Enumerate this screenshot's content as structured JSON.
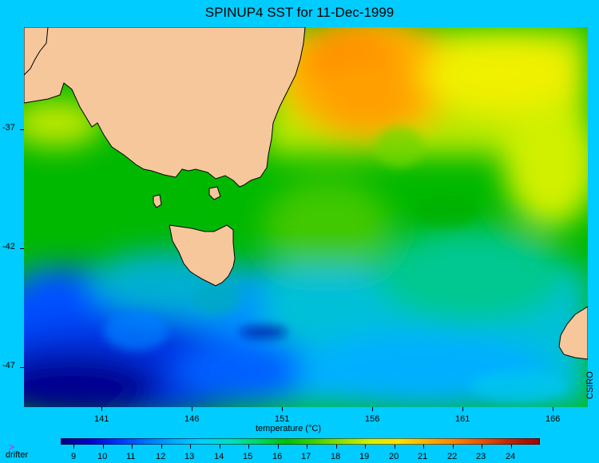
{
  "title": "SPINUP4 SST for 11-Dec-1999",
  "credit": "CSIRO",
  "x_axis_label": "temperature (°C)",
  "longitude_ticks": [
    "141",
    "146",
    "151",
    "156",
    "161",
    "166"
  ],
  "latitude_ticks": [
    "-37",
    "-42",
    "-47"
  ],
  "legend": {
    "drifter_symbol": ">",
    "drifter_label": "drifter"
  },
  "colorbar": {
    "labels": [
      "9",
      "10",
      "11",
      "12",
      "13",
      "14",
      "15",
      "16",
      "17",
      "18",
      "19",
      "20",
      "21",
      "22",
      "23",
      "24"
    ],
    "colors": [
      "#000080",
      "#0000c8",
      "#0030ff",
      "#0070ff",
      "#00a8ff",
      "#00d0ff",
      "#00e0c0",
      "#00d860",
      "#00c000",
      "#40d000",
      "#90e000",
      "#d8f000",
      "#ffe000",
      "#ffb000",
      "#ff8000",
      "#e85000",
      "#c02000",
      "#a00000"
    ]
  },
  "colors": {
    "land": "#f5c79b",
    "background": "#00ccff"
  }
}
